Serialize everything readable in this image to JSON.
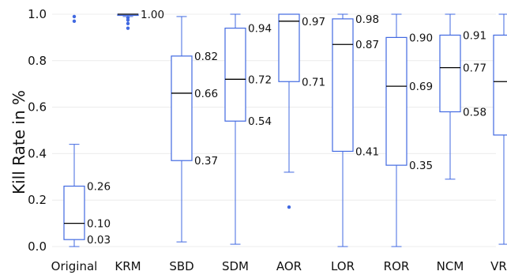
{
  "chart_data": {
    "type": "box",
    "title": "",
    "xlabel": "",
    "ylabel": "Kill Rate in %",
    "ylim": [
      0,
      1
    ],
    "yticks": [
      "0.0",
      "0.2",
      "0.4",
      "0.6",
      "0.8",
      "1.0"
    ],
    "ytick_values": [
      0,
      0.2,
      0.4,
      0.6,
      0.8,
      1.0
    ],
    "grid": true,
    "colors": {
      "box": "#4169e1",
      "median": "#000000",
      "grid": "#ececec"
    },
    "categories": [
      "Original",
      "KRM",
      "SBD",
      "SDM",
      "AOR",
      "LOR",
      "ROR",
      "NCM",
      "VRM"
    ],
    "boxes": [
      {
        "name": "Original",
        "whisker_low": 0.0,
        "q1": 0.03,
        "median": 0.1,
        "q3": 0.26,
        "whisker_high": 0.44,
        "outliers": [
          0.97,
          0.99
        ],
        "labels": {
          "q3": "0.26",
          "median": "0.10",
          "q1": "0.03"
        }
      },
      {
        "name": "KRM",
        "whisker_low": 0.99,
        "q1": 0.995,
        "median": 1.0,
        "q3": 1.0,
        "whisker_high": 1.0,
        "outliers": [
          0.94,
          0.96,
          0.975,
          0.985
        ],
        "labels": {
          "median": "1.00"
        }
      },
      {
        "name": "SBD",
        "whisker_low": 0.02,
        "q1": 0.37,
        "median": 0.66,
        "q3": 0.82,
        "whisker_high": 0.99,
        "outliers": [],
        "labels": {
          "q3": "0.82",
          "median": "0.66",
          "q1": "0.37"
        }
      },
      {
        "name": "SDM",
        "whisker_low": 0.01,
        "q1": 0.54,
        "median": 0.72,
        "q3": 0.94,
        "whisker_high": 1.0,
        "outliers": [],
        "labels": {
          "q3": "0.94",
          "median": "0.72",
          "q1": "0.54"
        }
      },
      {
        "name": "AOR",
        "whisker_low": 0.32,
        "q1": 0.71,
        "median": 0.97,
        "q3": 1.0,
        "whisker_high": 1.0,
        "outliers": [
          0.17
        ],
        "labels": {
          "median": "0.97",
          "q1": "0.71"
        }
      },
      {
        "name": "LOR",
        "whisker_low": 0.0,
        "q1": 0.41,
        "median": 0.87,
        "q3": 0.98,
        "whisker_high": 1.0,
        "outliers": [],
        "labels": {
          "q3": "0.98",
          "median": "0.87",
          "q1": "0.41"
        }
      },
      {
        "name": "ROR",
        "whisker_low": 0.0,
        "q1": 0.35,
        "median": 0.69,
        "q3": 0.9,
        "whisker_high": 1.0,
        "outliers": [],
        "labels": {
          "q3": "0.90",
          "median": "0.69",
          "q1": "0.35"
        }
      },
      {
        "name": "NCM",
        "whisker_low": 0.29,
        "q1": 0.58,
        "median": 0.77,
        "q3": 0.91,
        "whisker_high": 1.0,
        "outliers": [],
        "labels": {
          "q3": "0.91",
          "median": "0.77",
          "q1": "0.58"
        }
      },
      {
        "name": "VRM",
        "whisker_low": 0.01,
        "q1": 0.48,
        "median": 0.71,
        "q3": 0.91,
        "whisker_high": 1.0,
        "outliers": [],
        "labels": {
          "q3": "0.91",
          "median": "0.71",
          "q1": "0.48"
        }
      }
    ]
  }
}
